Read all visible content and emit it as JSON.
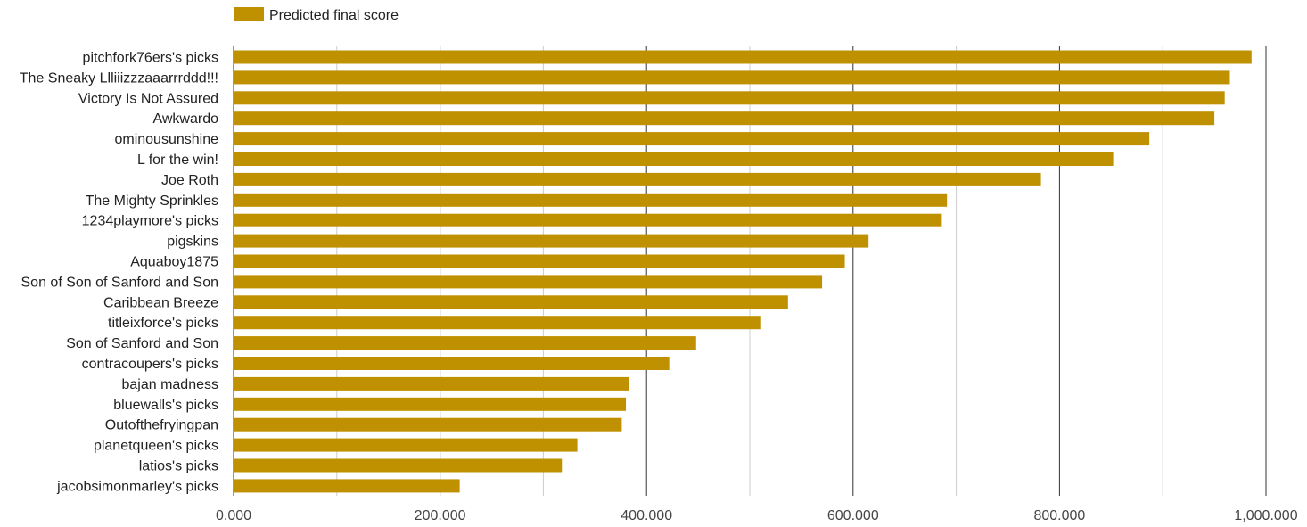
{
  "chart_data": {
    "type": "bar",
    "orientation": "horizontal",
    "title": "",
    "xlabel": "",
    "ylabel": "",
    "legend": {
      "position": "top-left",
      "entries": [
        "Predicted final score"
      ]
    },
    "grid": true,
    "xlim": [
      0,
      1000
    ],
    "x_ticks": [
      {
        "value": 0,
        "label": "0.000"
      },
      {
        "value": 200,
        "label": "200.000"
      },
      {
        "value": 400,
        "label": "400.000"
      },
      {
        "value": 600,
        "label": "600.000"
      },
      {
        "value": 800,
        "label": "800.000"
      },
      {
        "value": 1000,
        "label": "1,000.000"
      }
    ],
    "minor_gridlines": [
      100,
      300,
      500,
      700,
      900
    ],
    "categories": [
      "pitchfork76ers's picks",
      "The Sneaky Llliiizzzaaarrrddd!!!",
      "Victory Is Not Assured",
      "Awkwardo",
      "ominousunshine",
      "L for the win!",
      "Joe Roth",
      "The Mighty Sprinkles",
      "1234playmore's picks",
      "pigskins",
      "Aquaboy1875",
      "Son of Son of Sanford and Son",
      "Caribbean Breeze",
      "titleixforce's picks",
      "Son of Sanford and Son",
      "contracoupers's picks",
      "bajan madness",
      "bluewalls's picks",
      "Outofthefryingpan",
      "planetqueen's picks",
      "latios's picks",
      "jacobsimonmarley's picks"
    ],
    "series": [
      {
        "name": "Predicted final score",
        "color": "#bf9000",
        "values": [
          986,
          965,
          960,
          950,
          887,
          852,
          782,
          691,
          686,
          615,
          592,
          570,
          537,
          511,
          448,
          422,
          383,
          380,
          376,
          333,
          318,
          219
        ]
      }
    ]
  },
  "colors": {
    "bar": "#bf9000",
    "major_grid": "#333333",
    "minor_grid": "#cccccc",
    "axis_text": "#444444",
    "label_text": "#222222"
  }
}
